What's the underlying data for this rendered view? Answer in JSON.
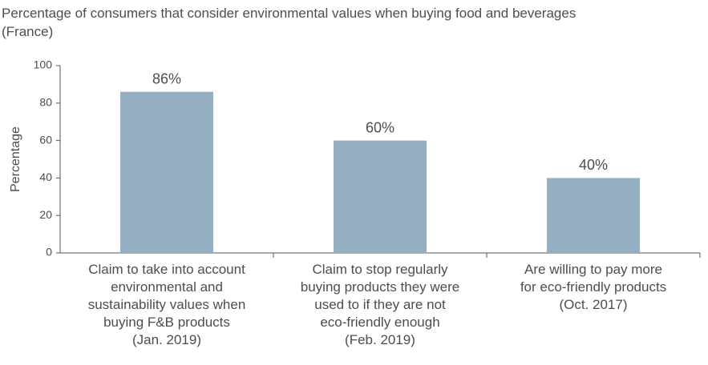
{
  "chart_data": {
    "type": "bar",
    "title": "Percentage of consumers that consider environmental values when buying food and beverages\n(France)",
    "y_label": "Percentage",
    "categories": [
      "Claim to take into account\nenvironmental and\nsustainability values when\nbuying F&B products\n(Jan. 2019)",
      "Claim to stop regularly\nbuying products they were\nused to if they are not\neco-friendly enough\n(Feb. 2019)",
      "Are willing to pay more\nfor eco-friendly products\n(Oct. 2017)"
    ],
    "values": [
      86,
      60,
      40
    ],
    "value_labels": [
      "86%",
      "60%",
      "40%"
    ],
    "color": "#94afc2",
    "ylim": [
      0,
      100
    ],
    "yticks": [
      0,
      20,
      40,
      60,
      80,
      100
    ],
    "grid": false
  }
}
